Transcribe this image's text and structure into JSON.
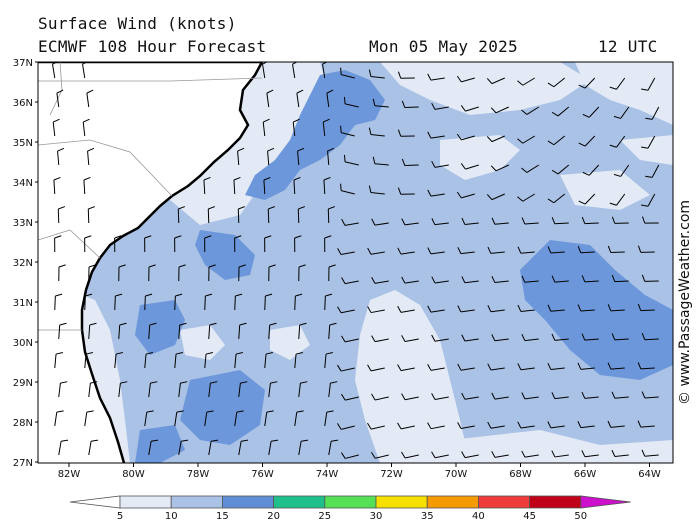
{
  "header": {
    "title": "Surface Wind (knots)",
    "model": "ECMWF 108 Hour Forecast",
    "date": "Mon 05 May 2025",
    "time": "12 UTC"
  },
  "credit": "© www.PassageWeather.com",
  "lat_labels": [
    "37N",
    "36N",
    "35N",
    "34N",
    "33N",
    "32N",
    "31N",
    "30N",
    "29N",
    "28N",
    "27N"
  ],
  "lon_labels": [
    "82W",
    "80W",
    "78W",
    "76W",
    "74W",
    "72W",
    "70W",
    "68W",
    "66W",
    "64W"
  ],
  "legend": {
    "labels": [
      "5",
      "10",
      "15",
      "20",
      "25",
      "30",
      "35",
      "40",
      "45",
      "50"
    ],
    "colors": [
      "#ffffff",
      "#e3eaf6",
      "#a9c2e6",
      "#5f8ed6",
      "#1fbf8c",
      "#55e055",
      "#f5e000",
      "#f59a00",
      "#ee3b3b",
      "#c00018",
      "#cc10cc"
    ]
  },
  "map_colors": {
    "land": "#ffffff",
    "calm": "#e3eaf6",
    "light": "#a9c2e6",
    "moderate": "#6c97da",
    "coast": "#000000",
    "border": "#999999"
  }
}
